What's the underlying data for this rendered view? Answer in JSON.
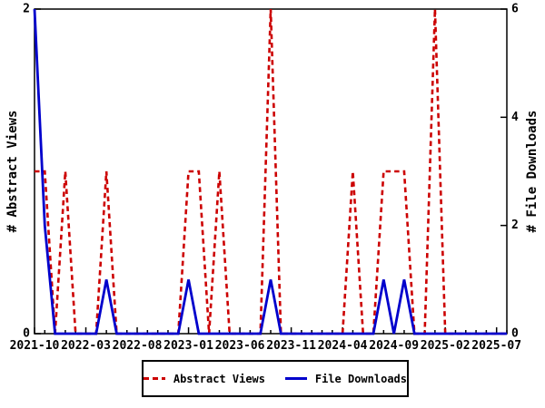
{
  "colors": {
    "abstract_views": "#cc0000",
    "file_downloads": "#0000cc",
    "axis": "#000000",
    "background": "#ffffff"
  },
  "chart_data": {
    "type": "line",
    "title": "",
    "x_months": [
      "2021-10",
      "2021-11",
      "2021-12",
      "2022-01",
      "2022-02",
      "2022-03",
      "2022-04",
      "2022-05",
      "2022-06",
      "2022-07",
      "2022-08",
      "2022-09",
      "2022-10",
      "2022-11",
      "2022-12",
      "2023-01",
      "2023-02",
      "2023-03",
      "2023-04",
      "2023-05",
      "2023-06",
      "2023-07",
      "2023-08",
      "2023-09",
      "2023-10",
      "2023-11",
      "2023-12",
      "2024-01",
      "2024-02",
      "2024-03",
      "2024-04",
      "2024-05",
      "2024-06",
      "2024-07",
      "2024-08",
      "2024-09",
      "2024-10",
      "2024-11",
      "2024-12",
      "2025-01",
      "2025-02",
      "2025-03",
      "2025-04",
      "2025-05",
      "2025-06",
      "2025-07",
      "2025-08"
    ],
    "series": [
      {
        "name": "Abstract Views",
        "axis": "left",
        "color": "#cc0000",
        "style": "dashed",
        "values": [
          1,
          1,
          0,
          1,
          0,
          0,
          0,
          1,
          0,
          0,
          0,
          0,
          0,
          0,
          0,
          1,
          1,
          0,
          1,
          0,
          0,
          0,
          0,
          2,
          0,
          0,
          0,
          0,
          0,
          0,
          0,
          1,
          0,
          0,
          1,
          1,
          1,
          0,
          0,
          2,
          0,
          0,
          0,
          0,
          0,
          0,
          0
        ]
      },
      {
        "name": "File Downloads",
        "axis": "right",
        "color": "#0000cc",
        "style": "solid",
        "values": [
          6,
          2,
          0,
          0,
          0,
          0,
          0,
          1,
          0,
          0,
          0,
          0,
          0,
          0,
          0,
          1,
          0,
          0,
          0,
          0,
          0,
          0,
          0,
          1,
          0,
          0,
          0,
          0,
          0,
          0,
          0,
          0,
          0,
          0,
          1,
          0,
          1,
          0,
          0,
          0,
          0,
          0,
          0,
          0,
          0,
          0,
          0
        ]
      }
    ],
    "left_axis": {
      "label": "# Abstract Views",
      "range": [
        0,
        2
      ],
      "ticks": [
        0,
        2
      ]
    },
    "right_axis": {
      "label": "# File Downloads",
      "range": [
        0,
        6
      ],
      "ticks": [
        0,
        2,
        4,
        6
      ]
    },
    "x_axis": {
      "tick_labels": [
        "2021-10",
        "2022-03",
        "2022-08",
        "2023-01",
        "2023-06",
        "2023-11",
        "2024-04",
        "2024-09",
        "2025-02",
        "2025-07"
      ],
      "major_tick_every_months": 5,
      "minor_tick_every_months": 1
    },
    "grid": false,
    "legend_position": "bottom-center"
  },
  "legend": {
    "items": [
      {
        "label": "Abstract Views",
        "color": "#cc0000",
        "style": "dashed"
      },
      {
        "label": "File Downloads",
        "color": "#0000cc",
        "style": "solid"
      }
    ]
  }
}
